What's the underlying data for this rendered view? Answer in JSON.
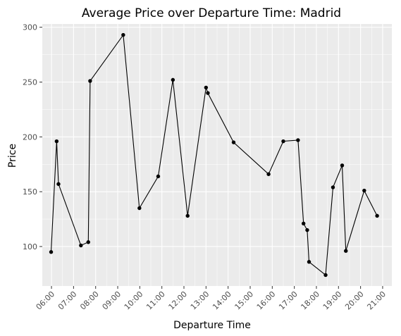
{
  "chart_data": {
    "type": "line",
    "title": "Average Price over Departure Time: Madrid",
    "xlabel": "Departure Time",
    "ylabel": "Price",
    "x_ticks": [
      "06:00",
      "07:00",
      "08:00",
      "09:00",
      "10:00",
      "11:00",
      "12:00",
      "13:00",
      "14:00",
      "15:00",
      "16:00",
      "17:00",
      "18:00",
      "19:00",
      "20:00",
      "21:00"
    ],
    "y_ticks": [
      "100",
      "150",
      "200",
      "250",
      "300"
    ],
    "xlim": [
      "05:35",
      "21:25"
    ],
    "ylim": [
      64,
      303
    ],
    "grid": true,
    "colors": {
      "panel": "#ebebeb",
      "grid": "#ffffff",
      "line": "#000000",
      "tick_text": "#4d4d4d",
      "tick_mark": "#333333"
    },
    "points": [
      {
        "x": "05:59",
        "y": 95
      },
      {
        "x": "06:14",
        "y": 196
      },
      {
        "x": "06:19",
        "y": 157
      },
      {
        "x": "07:20",
        "y": 101
      },
      {
        "x": "07:40",
        "y": 104
      },
      {
        "x": "07:45",
        "y": 251
      },
      {
        "x": "09:15",
        "y": 293
      },
      {
        "x": "09:59",
        "y": 135
      },
      {
        "x": "10:50",
        "y": 164
      },
      {
        "x": "11:30",
        "y": 252
      },
      {
        "x": "12:10",
        "y": 128
      },
      {
        "x": "13:00",
        "y": 245
      },
      {
        "x": "13:05",
        "y": 240
      },
      {
        "x": "14:15",
        "y": 195
      },
      {
        "x": "15:50",
        "y": 166
      },
      {
        "x": "16:30",
        "y": 196
      },
      {
        "x": "17:10",
        "y": 197
      },
      {
        "x": "17:25",
        "y": 121
      },
      {
        "x": "17:35",
        "y": 115
      },
      {
        "x": "17:40",
        "y": 86
      },
      {
        "x": "18:25",
        "y": 74
      },
      {
        "x": "18:45",
        "y": 154
      },
      {
        "x": "19:10",
        "y": 174
      },
      {
        "x": "19:20",
        "y": 96
      },
      {
        "x": "20:10",
        "y": 151
      },
      {
        "x": "20:45",
        "y": 128
      }
    ]
  }
}
